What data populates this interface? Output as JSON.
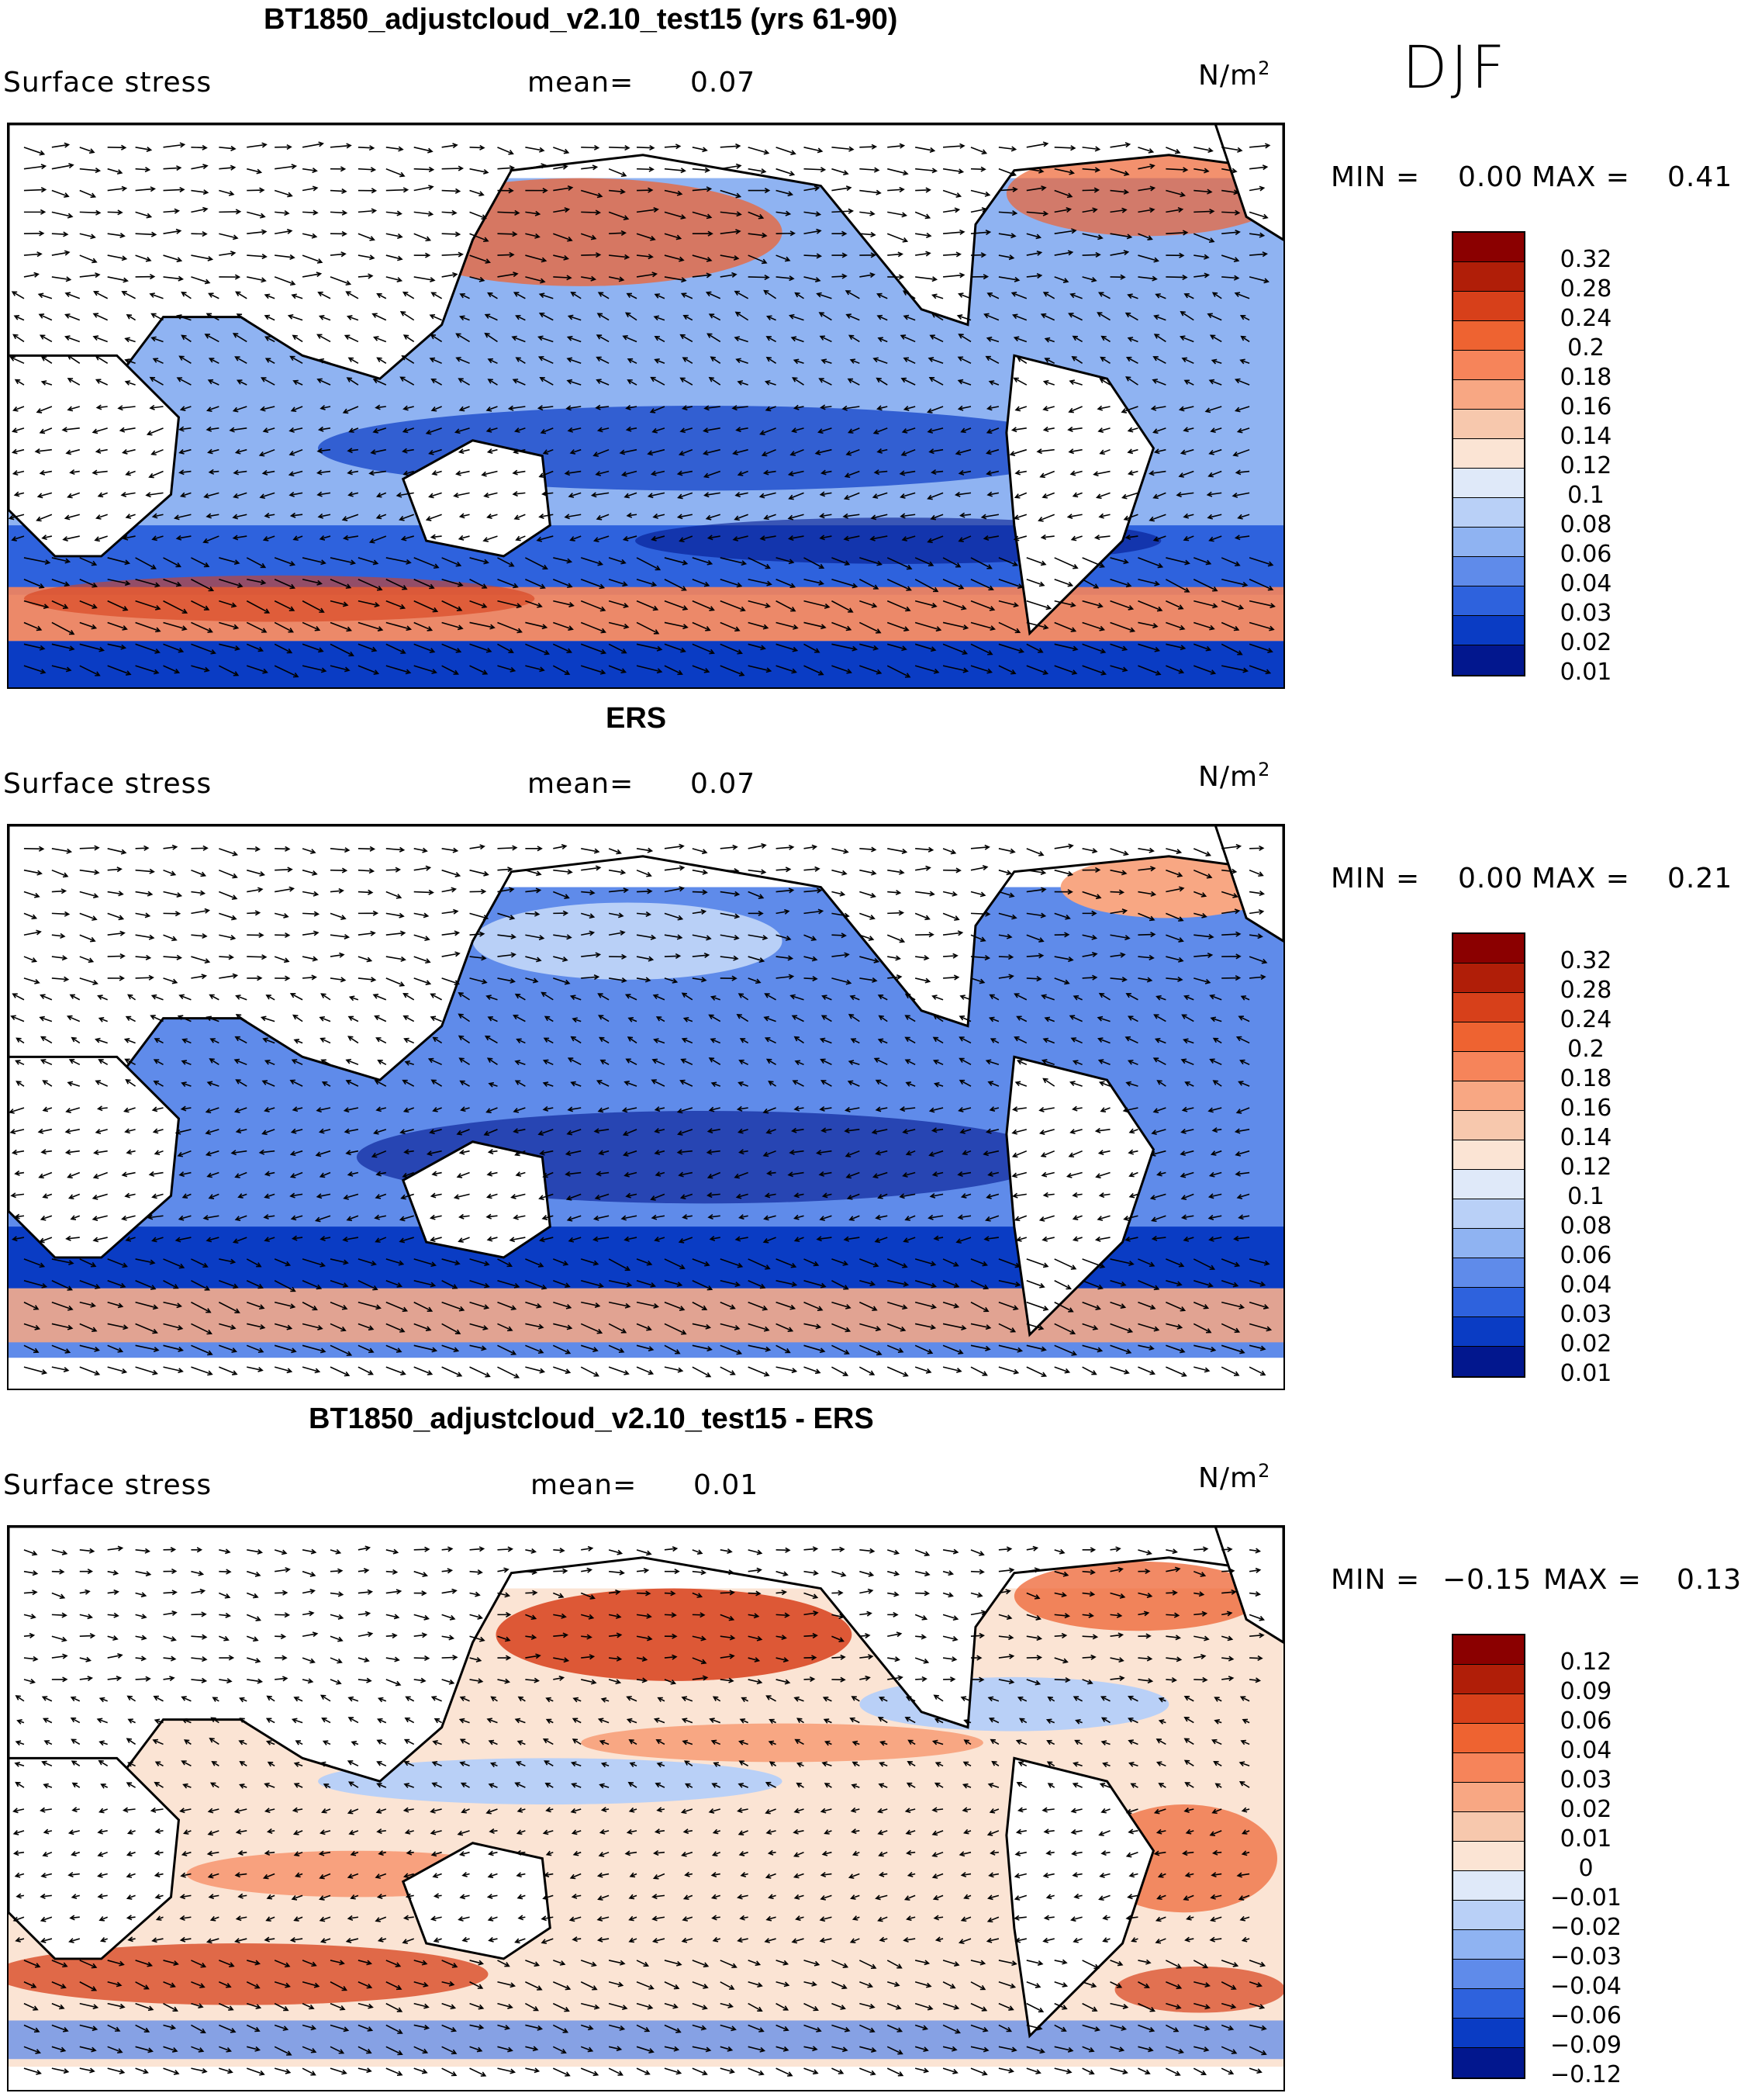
{
  "season": "DJF",
  "panels": [
    {
      "title": "BT1850_adjustcloud_v2.10_test15 (yrs 61-90)",
      "variable": "Surface stress",
      "mean_label": "mean=",
      "mean_value": "0.07",
      "units": "N/m",
      "units_exp": "2",
      "min_label": "MIN =",
      "min_value": "0.00",
      "max_label": "MAX =",
      "max_value": "0.41",
      "colorbar_labels": [
        "0.32",
        "0.28",
        "0.24",
        "0.2",
        "0.18",
        "0.16",
        "0.14",
        "0.12",
        "0.1",
        "0.08",
        "0.06",
        "0.04",
        "0.03",
        "0.02",
        "0.01"
      ],
      "colorbar_colors": [
        "#8b0000",
        "#b01e08",
        "#d7401a",
        "#ee6331",
        "#f6845a",
        "#f8a783",
        "#f7c8ad",
        "#fbe4d4",
        "#dfe9f9",
        "#b9d0f7",
        "#8fb3f2",
        "#5f8bea",
        "#2e62dd",
        "#0a3cc4",
        "#02178e"
      ]
    },
    {
      "title": "ERS",
      "variable": "Surface stress",
      "mean_label": "mean=",
      "mean_value": "0.07",
      "units": "N/m",
      "units_exp": "2",
      "min_label": "MIN =",
      "min_value": "0.00",
      "max_label": "MAX =",
      "max_value": "0.21",
      "colorbar_labels": [
        "0.32",
        "0.28",
        "0.24",
        "0.2",
        "0.18",
        "0.16",
        "0.14",
        "0.12",
        "0.1",
        "0.08",
        "0.06",
        "0.04",
        "0.03",
        "0.02",
        "0.01"
      ],
      "colorbar_colors": [
        "#8b0000",
        "#b01e08",
        "#d7401a",
        "#ee6331",
        "#f6845a",
        "#f8a783",
        "#f7c8ad",
        "#fbe4d4",
        "#dfe9f9",
        "#b9d0f7",
        "#8fb3f2",
        "#5f8bea",
        "#2e62dd",
        "#0a3cc4",
        "#02178e"
      ]
    },
    {
      "title": "BT1850_adjustcloud_v2.10_test15 - ERS",
      "variable": "Surface stress",
      "mean_label": "mean=",
      "mean_value": "0.01",
      "units": "N/m",
      "units_exp": "2",
      "min_label": "MIN =",
      "min_value": "−0.15",
      "max_label": "MAX =",
      "max_value": "0.13",
      "colorbar_labels": [
        "0.12",
        "0.09",
        "0.06",
        "0.04",
        "0.03",
        "0.02",
        "0.01",
        "0",
        "−0.01",
        "−0.02",
        "−0.03",
        "−0.04",
        "−0.06",
        "−0.09",
        "−0.12"
      ],
      "colorbar_colors": [
        "#8b0000",
        "#b01e08",
        "#d7401a",
        "#ee6331",
        "#f6845a",
        "#f8a783",
        "#f7c8ad",
        "#fbe4d4",
        "#dfe9f9",
        "#b9d0f7",
        "#8fb3f2",
        "#5f8bea",
        "#2e62dd",
        "#0a3cc4",
        "#02178e"
      ]
    }
  ]
}
